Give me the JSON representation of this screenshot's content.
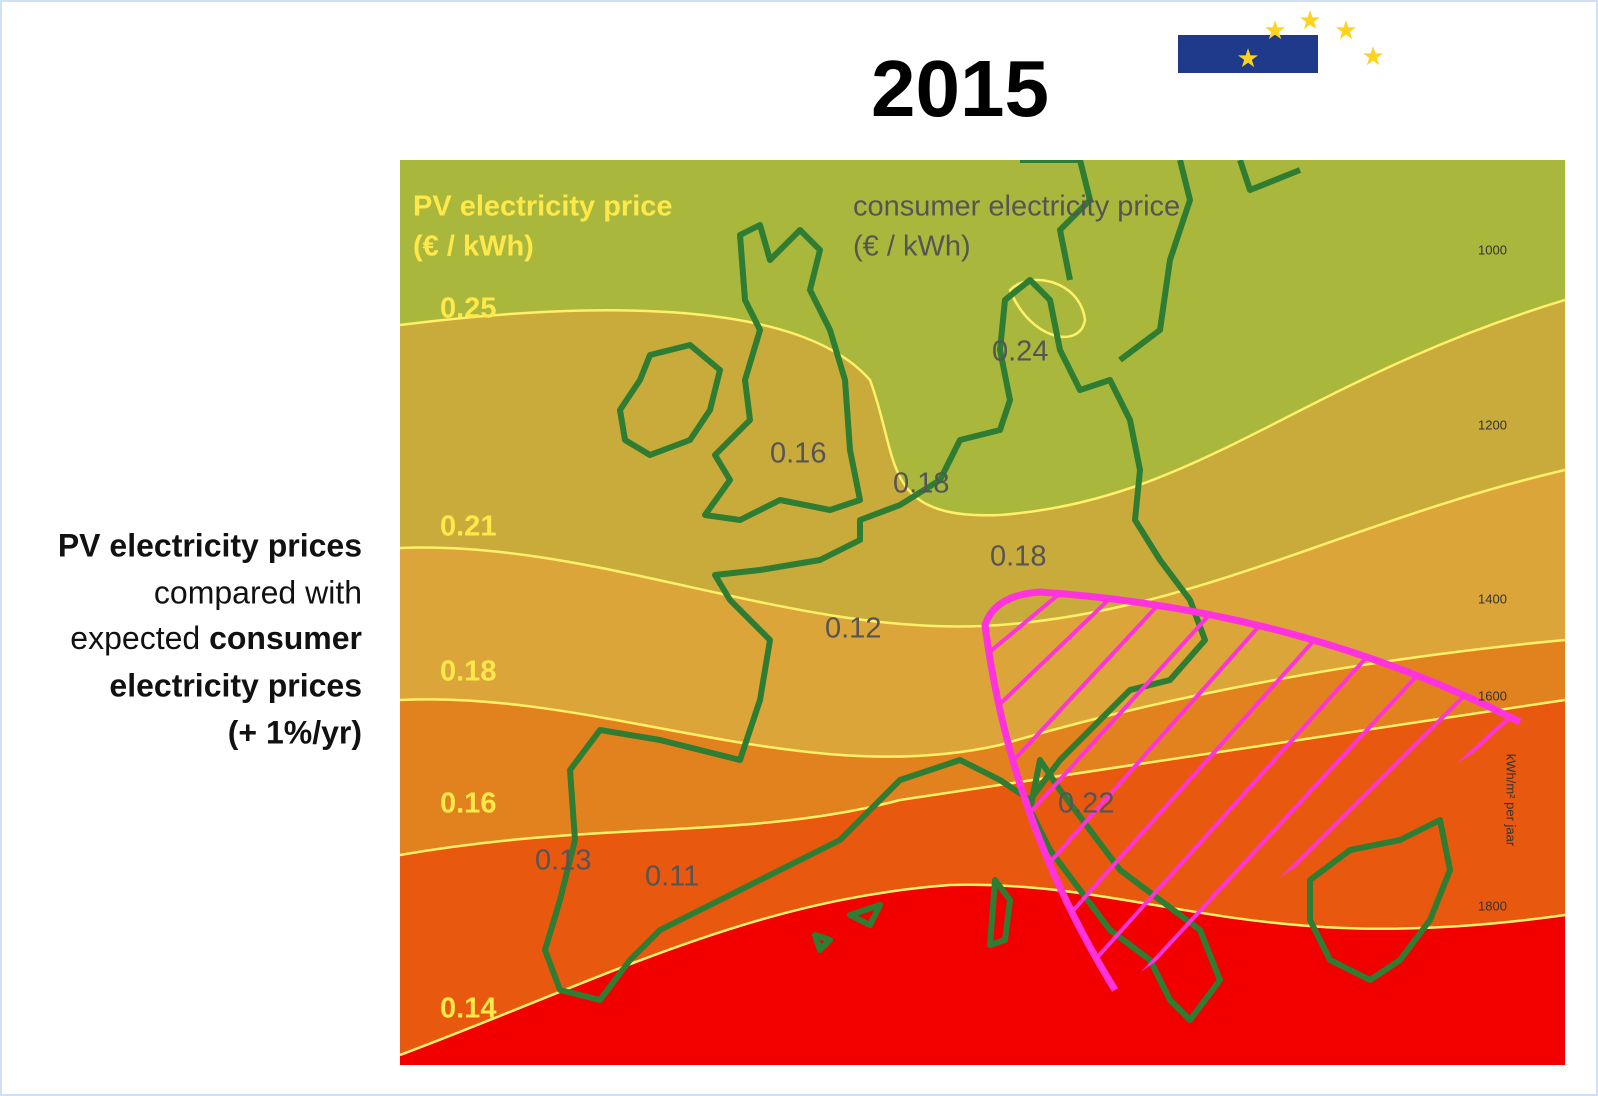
{
  "title": "2015",
  "side_text": {
    "line1": "PV electricity prices",
    "line2": "compared with",
    "line3a": "expected ",
    "line3b": "consumer",
    "line4": "electricity prices",
    "line5": "(+ 1%/yr)"
  },
  "legend": {
    "pv_title": "PV electricity price",
    "pv_unit": "(€ / kWh)",
    "consumer_title": "consumer electricity price",
    "consumer_unit": "(€ / kWh)"
  },
  "pv_labels": [
    "0.25",
    "0.21",
    "0.18",
    "0.16",
    "0.14"
  ],
  "consumer_labels": [
    "0.24",
    "0.16",
    "0.18",
    "0.18",
    "0.12",
    "0.22",
    "0.13",
    "0.11"
  ],
  "irradiation_scale": {
    "ticks": [
      "1000",
      "1200",
      "1400",
      "1600",
      "1800"
    ],
    "unit": "kWh/m² per jaar"
  }
}
